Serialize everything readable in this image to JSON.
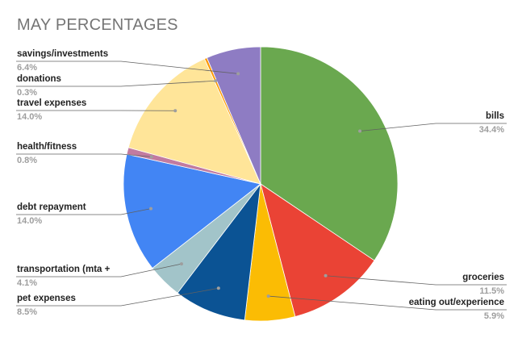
{
  "chart_data": {
    "type": "pie",
    "title": "MAY PERCENTAGES",
    "slices": [
      {
        "label": "bills",
        "pct_label": "34.4%",
        "value": 34.4,
        "color": "#6aa84f"
      },
      {
        "label": "groceries",
        "pct_label": "11.5%",
        "value": 11.5,
        "color": "#ea4335"
      },
      {
        "label": "eating out/experience",
        "pct_label": "5.9%",
        "value": 5.9,
        "color": "#fbbc04"
      },
      {
        "label": "pet expenses",
        "pct_label": "8.5%",
        "value": 8.5,
        "color": "#0b5394"
      },
      {
        "label": "transportation (mta +",
        "pct_label": "4.1%",
        "value": 4.1,
        "color": "#a2c4c9"
      },
      {
        "label": "debt repayment",
        "pct_label": "14.0%",
        "value": 14.0,
        "color": "#4285f4"
      },
      {
        "label": "health/fitness",
        "pct_label": "0.8%",
        "value": 0.8,
        "color": "#c27ba0"
      },
      {
        "label": "travel expenses",
        "pct_label": "14.0%",
        "value": 14.0,
        "color": "#ffe599"
      },
      {
        "label": "donations",
        "pct_label": "0.3%",
        "value": 0.3,
        "color": "#ff9900"
      },
      {
        "label": "savings/investments",
        "pct_label": "6.4%",
        "value": 6.4,
        "color": "#8e7cc3"
      }
    ],
    "legend": "none",
    "label_placement": "outside with leader lines"
  }
}
